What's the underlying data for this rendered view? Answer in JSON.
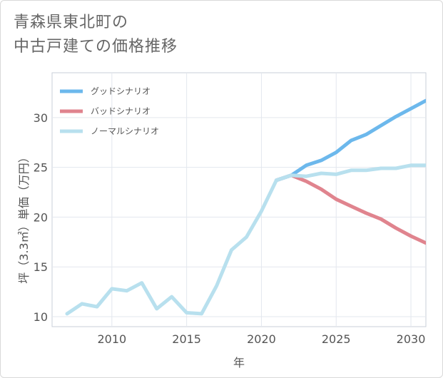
{
  "title_lines": [
    "青森県東北町の",
    "中古戸建ての価格推移"
  ],
  "chart_data": {
    "type": "line",
    "xlabel": "年",
    "ylabel": "坪（3.3㎡）単価（万円）",
    "xlim": [
      2006,
      2031
    ],
    "ylim": [
      9,
      34.5
    ],
    "xticks": [
      2010,
      2015,
      2020,
      2025,
      2030
    ],
    "yticks": [
      10,
      15,
      20,
      25,
      30
    ],
    "grid": true,
    "legend_position": "top-left",
    "series": [
      {
        "name": "グッドシナリオ",
        "color": "#6cb8ec",
        "x": [
          2021,
          2022,
          2023,
          2024,
          2025,
          2026,
          2027,
          2028,
          2029,
          2030,
          2031
        ],
        "y": [
          23.7,
          24.2,
          25.2,
          25.7,
          26.5,
          27.7,
          28.3,
          29.2,
          30.1,
          30.9,
          31.7
        ]
      },
      {
        "name": "バッドシナリオ",
        "color": "#e0848e",
        "x": [
          2021,
          2022,
          2023,
          2024,
          2025,
          2026,
          2027,
          2028,
          2029,
          2030,
          2031
        ],
        "y": [
          23.7,
          24.2,
          23.6,
          22.8,
          21.8,
          21.1,
          20.4,
          19.8,
          18.9,
          18.1,
          17.4
        ]
      },
      {
        "name": "ノーマルシナリオ",
        "color": "#b8e0ee",
        "x": [
          2007,
          2008,
          2009,
          2010,
          2011,
          2012,
          2013,
          2014,
          2015,
          2016,
          2017,
          2018,
          2019,
          2020,
          2021,
          2022,
          2023,
          2024,
          2025,
          2026,
          2027,
          2028,
          2029,
          2030,
          2031
        ],
        "y": [
          10.3,
          11.3,
          11.0,
          12.8,
          12.6,
          13.4,
          10.8,
          12.0,
          10.4,
          10.3,
          13.1,
          16.7,
          18.0,
          20.6,
          23.7,
          24.2,
          24.1,
          24.4,
          24.3,
          24.7,
          24.7,
          24.9,
          24.9,
          25.2,
          25.2
        ]
      }
    ]
  }
}
